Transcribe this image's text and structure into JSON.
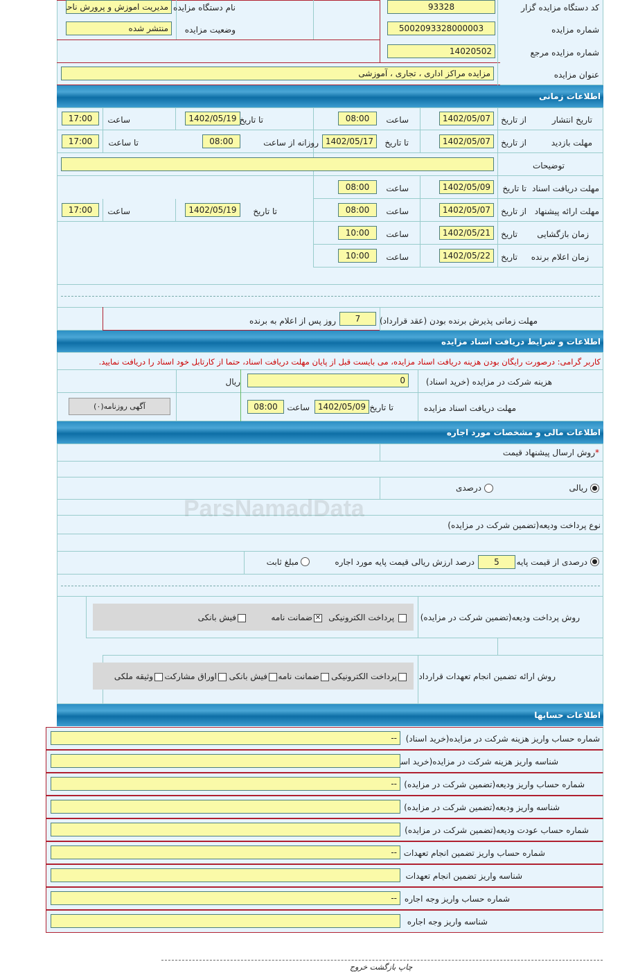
{
  "general": {
    "org_code_label": "کد دستگاه مزایده گزار",
    "org_code": "93328",
    "org_name_label": "نام دستگاه مزایده گزار",
    "org_name": "مدیریت اموزش و پرورش ناحیه",
    "auction_no_label": "شماره مزایده",
    "auction_no": "5002093328000003",
    "status_label": "وضعیت مزایده",
    "status": "منتشر شده",
    "ref_no_label": "شماره مزایده مرجع",
    "ref_no": "14020502",
    "title_label": "عنوان مزایده",
    "title": "مزایده مراکز اداری ، تجاری ، آموزشی"
  },
  "time": {
    "header": "اطلاعات زمانی",
    "from_date": "از تاریخ",
    "to_date": "تا تاریخ",
    "date": "تاریخ",
    "hour": "ساعت",
    "to_hour": "تا ساعت",
    "daily_from_hour": "روزانه از ساعت",
    "publish": {
      "label": "تاریخ انتشار",
      "from": "1402/05/07",
      "from_time": "08:00",
      "to": "1402/05/19",
      "to_time": "17:00"
    },
    "visit": {
      "label": "مهلت بازدید",
      "from": "1402/05/07",
      "to": "1402/05/17",
      "from_time": "08:00",
      "to_time": "17:00"
    },
    "notes": {
      "label": "توضیحات",
      "value": ""
    },
    "docs": {
      "label": "مهلت دریافت اسناد",
      "to": "1402/05/09",
      "time": "08:00"
    },
    "offer": {
      "label": "مهلت ارائه پیشنهاد",
      "from": "1402/05/07",
      "from_time": "08:00",
      "to": "1402/05/19",
      "to_time": "17:00"
    },
    "opening": {
      "label": "زمان بازگشایی",
      "date": "1402/05/21",
      "time": "10:00"
    },
    "winner": {
      "label": "زمان اعلام برنده",
      "date": "1402/05/22",
      "time": "10:00"
    },
    "accept": {
      "label": "مهلت زمانی پذیرش برنده بودن (عقد قرارداد)",
      "days": "7",
      "suffix": "روز پس از اعلام به برنده"
    }
  },
  "docs": {
    "header": "اطلاعات و شرایط دریافت اسناد مزایده",
    "notice": "کاربر گرامی: درصورت رایگان بودن هزینه دریافت اسناد مزایده، می بایست قبل از پایان مهلت دریافت اسناد، حتما از کارتابل خود اسناد را دریافت نمایید.",
    "fee_label": "هزینه شرکت در مزایده (خرید اسناد)",
    "fee": "0",
    "currency": "ریال",
    "deadline_label": "مهلت دریافت اسناد مزایده",
    "to_date": "تا تاریخ",
    "date": "1402/05/09",
    "hour": "ساعت",
    "time": "08:00",
    "newspaper_button": "آگهی روزنامه(۰)"
  },
  "finance": {
    "header": "اطلاعات مالی و مشخصات مورد اجاره",
    "required_mark": "*",
    "price_method_label": "روش ارسال پیشنهاد قیمت",
    "rial": "ریالی",
    "percent": "درصدی",
    "price_method_selected": "ریالی",
    "deposit_type_label": "نوع پرداخت ودیعه(تضمین شرکت در مزایده)",
    "deposit_percent_label": "درصدی از قیمت پایه",
    "deposit_percent": "5",
    "deposit_percent_suffix": "درصد ارزش ریالی قیمت پایه مورد اجاره",
    "fixed_amount": "مبلغ ثابت",
    "deposit_type_selected": "درصدی از قیمت پایه",
    "deposit_pay_label": "روش پرداخت ودیعه(تضمین شرکت در مزایده)",
    "deposit_pay": [
      {
        "label": "پرداخت الکترونیکی",
        "checked": false
      },
      {
        "label": "ضمانت نامه",
        "checked": true
      },
      {
        "label": "فیش بانکی",
        "checked": false
      }
    ],
    "guarantee_label": "روش ارائه تضمین انجام تعهدات قرارداد",
    "guarantee": [
      {
        "label": "پرداخت الکترونیکی",
        "checked": false
      },
      {
        "label": "ضمانت نامه",
        "checked": false
      },
      {
        "label": "فیش بانکی",
        "checked": false
      },
      {
        "label": "اوراق مشارکت",
        "checked": false
      },
      {
        "label": "وثیقه ملکی",
        "checked": false
      }
    ]
  },
  "accounts": {
    "header": "اطلاعات حسابها",
    "rows": [
      {
        "label": "شماره حساب واریز هزینه شرکت در مزایده(خرید اسناد)",
        "value": "--"
      },
      {
        "label": "شناسه واریز هزینه شرکت در مزایده(خرید اسناد)",
        "value": ""
      },
      {
        "label": "شماره حساب واریز ودیعه(تضمین شرکت در مزایده)",
        "value": "--"
      },
      {
        "label": "شناسه واریز ودیعه(تضمین شرکت در مزایده)",
        "value": ""
      },
      {
        "label": "شماره حساب عودت ودیعه(تضمین شرکت در مزایده)",
        "value": ""
      },
      {
        "label": "شماره حساب واریز تضمین انجام تعهدات",
        "value": "--"
      },
      {
        "label": "شناسه واریز تضمین انجام تعهدات",
        "value": ""
      },
      {
        "label": "شماره حساب واریز وجه اجاره",
        "value": "--"
      },
      {
        "label": "شناسه واریز وجه اجاره",
        "value": ""
      }
    ]
  },
  "footer": {
    "print": "چاپ",
    "back": "بازگشت",
    "exit": "خروج"
  },
  "watermark": "ParsNamadData"
}
